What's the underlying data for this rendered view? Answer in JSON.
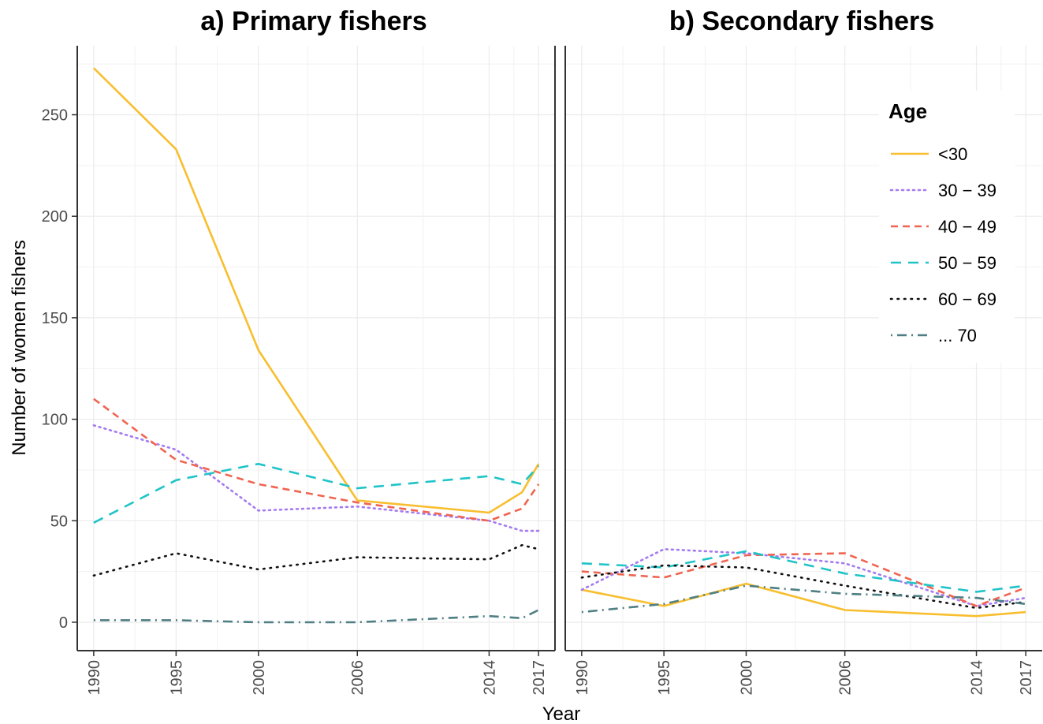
{
  "chart_data": [
    {
      "type": "line",
      "title": "a) Primary fishers",
      "x": [
        1990,
        1995,
        2000,
        2006,
        2014,
        2016,
        2017
      ],
      "x_ticks": [
        1990,
        1995,
        2000,
        2006,
        2014,
        2017
      ],
      "xlim": [
        1989,
        2018
      ],
      "ylim": [
        -14,
        284
      ],
      "y_ticks": [
        0,
        50,
        100,
        150,
        200,
        250
      ],
      "grid": true,
      "series": [
        {
          "name": "<30",
          "values": [
            273,
            233,
            134,
            60,
            54,
            64,
            78
          ]
        },
        {
          "name": "30 − 39",
          "values": [
            97,
            85,
            55,
            57,
            50,
            45,
            45
          ]
        },
        {
          "name": "40 − 49",
          "values": [
            110,
            80,
            68,
            59,
            50,
            56,
            68
          ]
        },
        {
          "name": "50 − 59",
          "values": [
            49,
            70,
            78,
            66,
            72,
            68,
            77
          ]
        },
        {
          "name": "60 − 69",
          "values": [
            23,
            34,
            26,
            32,
            31,
            38,
            36
          ]
        },
        {
          "name": "... 70",
          "values": [
            1,
            1,
            0,
            0,
            3,
            2,
            6
          ]
        }
      ]
    },
    {
      "type": "line",
      "title": "b) Secondary fishers",
      "x": [
        1990,
        1995,
        2000,
        2006,
        2014,
        2017
      ],
      "x_ticks": [
        1990,
        1995,
        2000,
        2006,
        2014,
        2017
      ],
      "xlim": [
        1989,
        2018
      ],
      "ylim": [
        -14,
        284
      ],
      "grid": true,
      "series": [
        {
          "name": "<30",
          "values": [
            16,
            8,
            19,
            6,
            3,
            5
          ]
        },
        {
          "name": "30 − 39",
          "values": [
            16,
            36,
            34,
            29,
            8,
            12
          ]
        },
        {
          "name": "40 − 49",
          "values": [
            25,
            22,
            33,
            34,
            8,
            17
          ]
        },
        {
          "name": "50 − 59",
          "values": [
            29,
            27,
            35,
            24,
            15,
            18
          ]
        },
        {
          "name": "60 − 69",
          "values": [
            22,
            28,
            27,
            18,
            7,
            10
          ]
        },
        {
          "name": "... 70",
          "values": [
            5,
            9,
            18,
            14,
            12,
            9
          ]
        }
      ]
    }
  ],
  "axes": {
    "xlabel": "Year",
    "ylabel": "Number of women fishers"
  },
  "legend": {
    "title": "Age",
    "placement": "top-right inside panel b",
    "entries": [
      {
        "label": "<30",
        "color": "#F8BE2E",
        "dash": "solid"
      },
      {
        "label": "30 − 39",
        "color": "#A57BF0",
        "dash": "dotted"
      },
      {
        "label": "40 − 49",
        "color": "#F06450",
        "dash": "dashed"
      },
      {
        "label": "50 − 59",
        "color": "#1FC4C8",
        "dash": "longdash"
      },
      {
        "label": "60 − 69",
        "color": "#111111",
        "dash": "dots"
      },
      {
        "label": "... 70",
        "color": "#4F7F84",
        "dash": "dotdash"
      }
    ]
  }
}
